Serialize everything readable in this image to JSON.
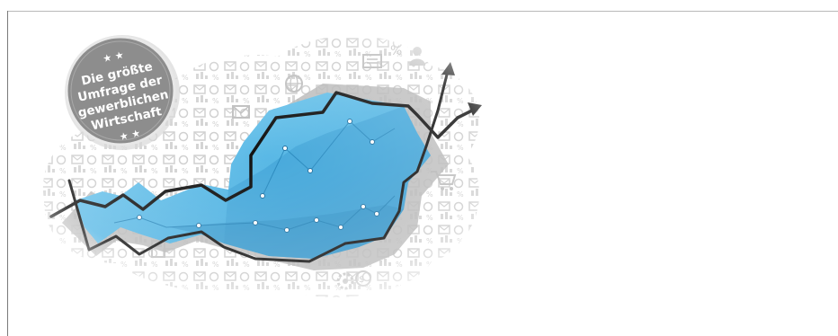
{
  "badge": {
    "stars_top": "★ ★",
    "lines": [
      "Die größte",
      "Umfrage der",
      "gewerblichen",
      "Wirtschaft"
    ],
    "stars_bottom": "★ ★"
  },
  "colors": {
    "map_light": "#6cc3ea",
    "map_dark": "#2f93c8",
    "badge_fill": "#8e8e8e",
    "badge_ring": "#d9d9d9",
    "icons": "#cfcfcf",
    "shadow": "#b8b8b8",
    "arrow": "#111111"
  },
  "icons": [
    "envelope-icon",
    "chart-icon",
    "people-icon",
    "gear-icon",
    "cart-icon",
    "percent-icon",
    "euro-icon",
    "globe-icon",
    "document-icon",
    "calculator-icon"
  ]
}
